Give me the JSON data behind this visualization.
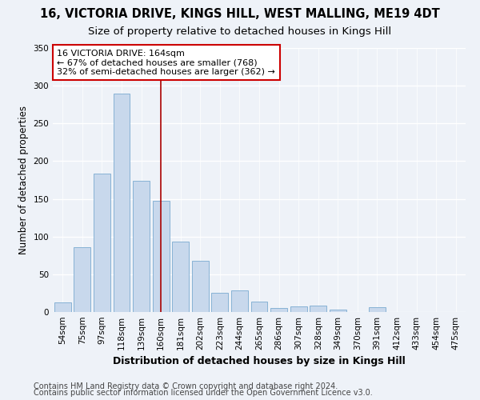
{
  "title1": "16, VICTORIA DRIVE, KINGS HILL, WEST MALLING, ME19 4DT",
  "title2": "Size of property relative to detached houses in Kings Hill",
  "xlabel": "Distribution of detached houses by size in Kings Hill",
  "ylabel": "Number of detached properties",
  "bar_color": "#c8d8ec",
  "bar_edge_color": "#7aaad0",
  "background_color": "#eef2f8",
  "grid_color": "#ffffff",
  "categories": [
    "54sqm",
    "75sqm",
    "97sqm",
    "118sqm",
    "139sqm",
    "160sqm",
    "181sqm",
    "202sqm",
    "223sqm",
    "244sqm",
    "265sqm",
    "286sqm",
    "307sqm",
    "328sqm",
    "349sqm",
    "370sqm",
    "391sqm",
    "412sqm",
    "433sqm",
    "454sqm",
    "475sqm"
  ],
  "values": [
    13,
    86,
    184,
    290,
    174,
    147,
    93,
    68,
    25,
    29,
    14,
    5,
    7,
    9,
    3,
    0,
    6,
    0,
    0,
    0,
    0
  ],
  "ylim": [
    0,
    350
  ],
  "yticks": [
    0,
    50,
    100,
    150,
    200,
    250,
    300,
    350
  ],
  "vline_x": 5.0,
  "vline_color": "#aa0000",
  "annotation_text": "16 VICTORIA DRIVE: 164sqm\n← 67% of detached houses are smaller (768)\n32% of semi-detached houses are larger (362) →",
  "annotation_box_color": "#ffffff",
  "annotation_box_edge_color": "#cc0000",
  "footer1": "Contains HM Land Registry data © Crown copyright and database right 2024.",
  "footer2": "Contains public sector information licensed under the Open Government Licence v3.0.",
  "title1_fontsize": 10.5,
  "title2_fontsize": 9.5,
  "xlabel_fontsize": 9,
  "ylabel_fontsize": 8.5,
  "tick_fontsize": 7.5,
  "annotation_fontsize": 8,
  "footer_fontsize": 7
}
